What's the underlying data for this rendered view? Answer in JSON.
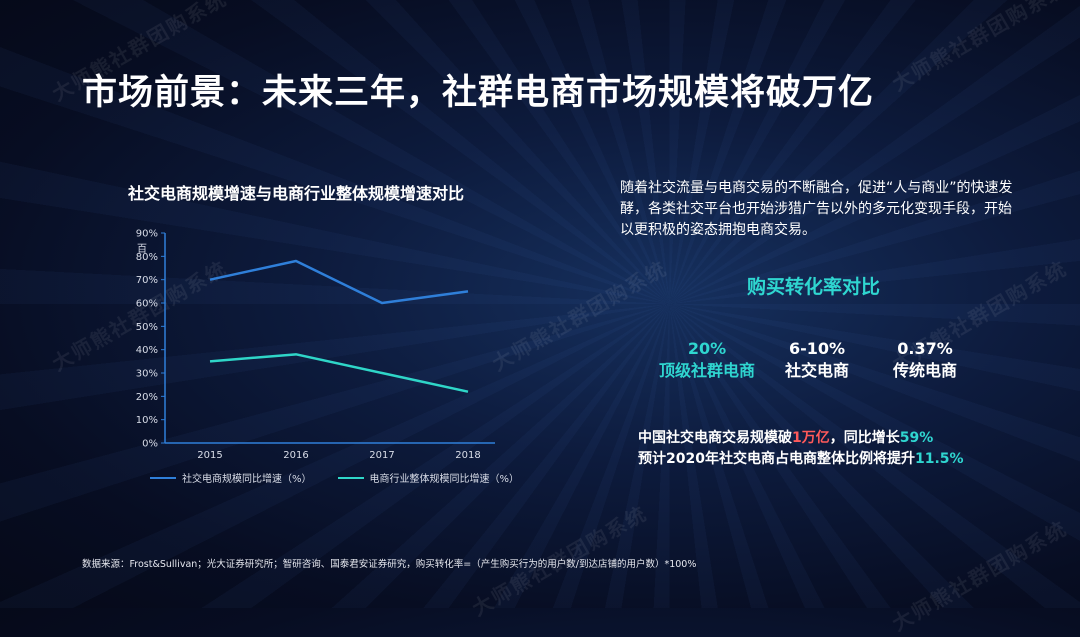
{
  "title": "市场前景：未来三年，社群电商市场规模将破万亿",
  "watermark_text": "大师熊社群团购系统",
  "chart_data": {
    "type": "line",
    "title": "社交电商规模增速与电商行业整体规模增速对比",
    "categories": [
      "2015",
      "2016",
      "2017",
      "2018"
    ],
    "series": [
      {
        "name": "社交电商规模同比增速（%）",
        "values": [
          70,
          78,
          60,
          65
        ],
        "color": "#2f7fd9"
      },
      {
        "name": "电商行业整体规模同比增速（%）",
        "values": [
          35,
          38,
          30,
          22
        ],
        "color": "#2fd6c8"
      }
    ],
    "y_ticks": [
      "0%",
      "10%",
      "20%",
      "30%",
      "40%",
      "50%",
      "60%",
      "70%",
      "80%",
      "90%"
    ],
    "ylim": [
      0,
      90
    ],
    "yunit": "百",
    "legend_position": "bottom",
    "grid": false
  },
  "description": "随着社交流量与电商交易的不断融合，促进“人与商业”的快速发酵，各类社交平台也开始涉猎广告以外的多元化变现手段，开始以更积极的姿态拥抱电商交易。",
  "conversion": {
    "title": "购买转化率对比",
    "items": [
      {
        "value": "20%",
        "label": "顶级社群电商"
      },
      {
        "value": "6-10%",
        "label": "社交电商"
      },
      {
        "value": "0.37%",
        "label": "传统电商"
      }
    ]
  },
  "summary": {
    "line1_prefix": "中国社交电商交易规模破",
    "line1_highlight1": "1万亿",
    "line1_mid": "，同比增长",
    "line1_highlight2": "59%",
    "line2_prefix": "预计2020年社交电商占电商整体比例将提升",
    "line2_highlight": "11.5%"
  },
  "footnote": "数据来源：Frost&Sullivan；光大证券研究所；智研咨询、国泰君安证券研究，购买转化率=（产生购买行为的用户数/到达店铺的用户数）*100%"
}
